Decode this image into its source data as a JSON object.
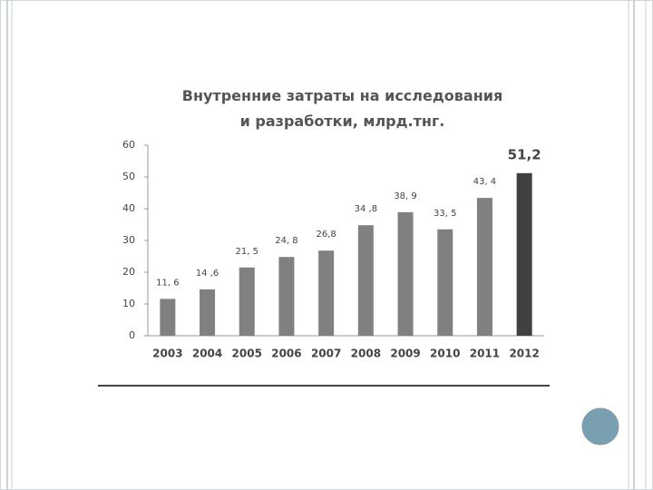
{
  "chart_data": {
    "type": "bar",
    "title": "Внутренние затраты на исследования и разработки, млрд.тнг.",
    "categories": [
      "2003",
      "2004",
      "2005",
      "2006",
      "2007",
      "2008",
      "2009",
      "2010",
      "2011",
      "2012"
    ],
    "values": [
      11.6,
      14.6,
      21.5,
      24.8,
      26.8,
      34.8,
      38.9,
      33.5,
      43.4,
      51.2
    ],
    "value_labels": [
      "11, 6",
      "14 ,6",
      "21, 5",
      "24, 8",
      "26,8",
      "34 ,8",
      "38, 9",
      "33, 5",
      "43, 4",
      "51,2"
    ],
    "colors": [
      "#808080",
      "#808080",
      "#808080",
      "#808080",
      "#808080",
      "#808080",
      "#808080",
      "#808080",
      "#808080",
      "#404040"
    ],
    "ylim": [
      0,
      60
    ],
    "yticks": [
      0,
      10,
      20,
      30,
      40,
      50,
      60
    ],
    "grid": false
  }
}
